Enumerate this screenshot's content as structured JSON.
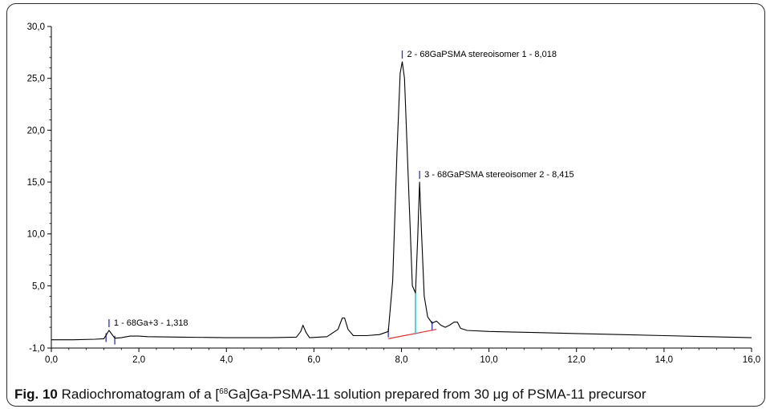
{
  "figure": {
    "number": "Fig. 10",
    "caption_before": "Radiochromatogram of a [",
    "caption_sup": "68",
    "caption_after": "Ga]Ga-PSMA-11 solution prepared from 30 μg of PSMA-11 precursor"
  },
  "chart_data": {
    "type": "line",
    "title": "",
    "xlabel": "",
    "ylabel": "",
    "xlim": [
      0,
      16
    ],
    "ylim": [
      -1,
      30
    ],
    "x_ticks": [
      "0,0",
      "2,0",
      "4,0",
      "6,0",
      "8,0",
      "10,0",
      "12,0",
      "14,0",
      "16,0"
    ],
    "y_ticks": [
      "-1,0",
      "5,0",
      "10,0",
      "15,0",
      "20,0",
      "25,0",
      "30,0"
    ],
    "grid": false,
    "series": [
      {
        "color": "#000000",
        "x": [
          0.0,
          0.5,
          1.0,
          1.2,
          1.318,
          1.45,
          1.6,
          1.8,
          2.0,
          2.2,
          3.0,
          4.0,
          5.0,
          5.6,
          5.7,
          5.75,
          5.82,
          5.9,
          6.3,
          6.55,
          6.65,
          6.7,
          6.78,
          6.9,
          7.2,
          7.5,
          7.7,
          7.8,
          7.9,
          7.97,
          8.018,
          8.07,
          8.15,
          8.25,
          8.32,
          8.37,
          8.415,
          8.46,
          8.52,
          8.6,
          8.7,
          8.8,
          8.9,
          9.0,
          9.1,
          9.2,
          9.28,
          9.35,
          9.5,
          10.0,
          11.0,
          12.0,
          13.0,
          14.0,
          15.0,
          16.0
        ],
        "y": [
          -0.2,
          -0.2,
          -0.15,
          -0.1,
          0.7,
          -0.05,
          0.0,
          0.15,
          0.15,
          0.1,
          0.05,
          0.0,
          0.0,
          0.05,
          0.6,
          1.2,
          0.5,
          0.0,
          0.1,
          0.8,
          1.9,
          1.9,
          0.8,
          0.2,
          0.2,
          0.3,
          0.6,
          5.5,
          18.0,
          25.5,
          26.6,
          25.0,
          16.0,
          5.0,
          4.3,
          9.5,
          15.0,
          10.0,
          4.0,
          2.0,
          1.4,
          1.6,
          1.2,
          1.0,
          1.2,
          1.5,
          1.5,
          0.9,
          0.7,
          0.6,
          0.5,
          0.4,
          0.3,
          0.2,
          0.1,
          0.0
        ]
      }
    ],
    "peaks": [
      {
        "label": "1 - 68Ga+3 - 1,318",
        "x": 1.318,
        "y": 0.7
      },
      {
        "label": "2 - 68GaPSMA stereoisomer 1 - 8,018",
        "x": 8.018,
        "y": 26.6
      },
      {
        "label": "3 - 68GaPSMA stereoisomer 2 - 8,415",
        "x": 8.415,
        "y": 15.0
      }
    ],
    "baseline": {
      "color": "#e53030",
      "x": [
        7.7,
        8.8
      ],
      "y": [
        -0.1,
        0.8
      ]
    },
    "split_marker": {
      "color": "#26c6e6",
      "x": 8.32,
      "y": [
        0.3,
        4.3
      ]
    },
    "integration_marks": {
      "color": "#3030c0"
    }
  }
}
